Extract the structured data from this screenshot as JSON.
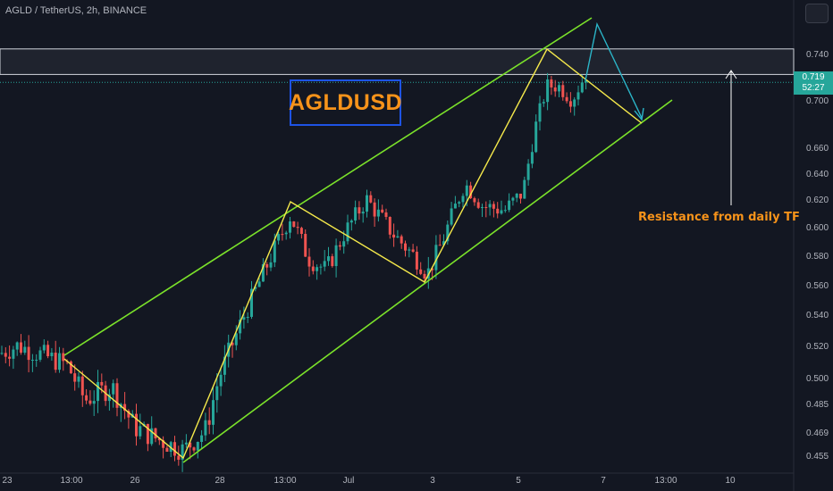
{
  "header": {
    "symbol": "AGLD / TetherUS, 2h, BINANCE"
  },
  "title_label": "AGLDUSD",
  "annotation": "Resistance from daily TF",
  "price_tag": {
    "price": "0.719",
    "countdown": "52:27"
  },
  "colors": {
    "background": "#131722",
    "up": "#26a69a",
    "down": "#ef5350",
    "channel": "#7be22a",
    "zigzag": "#f5e94b",
    "projection": "#2bb5c8",
    "title": "#f7931a",
    "title_border": "#1e53e5"
  },
  "chart_data": {
    "type": "candlestick",
    "y_axis": {
      "ticks": [
        0.455,
        0.469,
        0.485,
        0.5,
        0.52,
        0.54,
        0.56,
        0.58,
        0.6,
        0.62,
        0.64,
        0.66,
        0.7,
        0.74
      ],
      "tick_labels": [
        "0.455",
        "0.469",
        "0.485",
        "0.500",
        "0.520",
        "0.540",
        "0.560",
        "0.580",
        "0.600",
        "0.620",
        "0.640",
        "0.660",
        "0.700",
        "0.740"
      ]
    },
    "x_axis": {
      "tick_labels": [
        "23",
        "13:00",
        "26",
        "28",
        "13:00",
        "Jul",
        "3",
        "5",
        "7",
        "13:00",
        "10"
      ]
    },
    "resistance_zone": {
      "low": 0.722,
      "high": 0.744
    },
    "current_price": 0.719
  }
}
